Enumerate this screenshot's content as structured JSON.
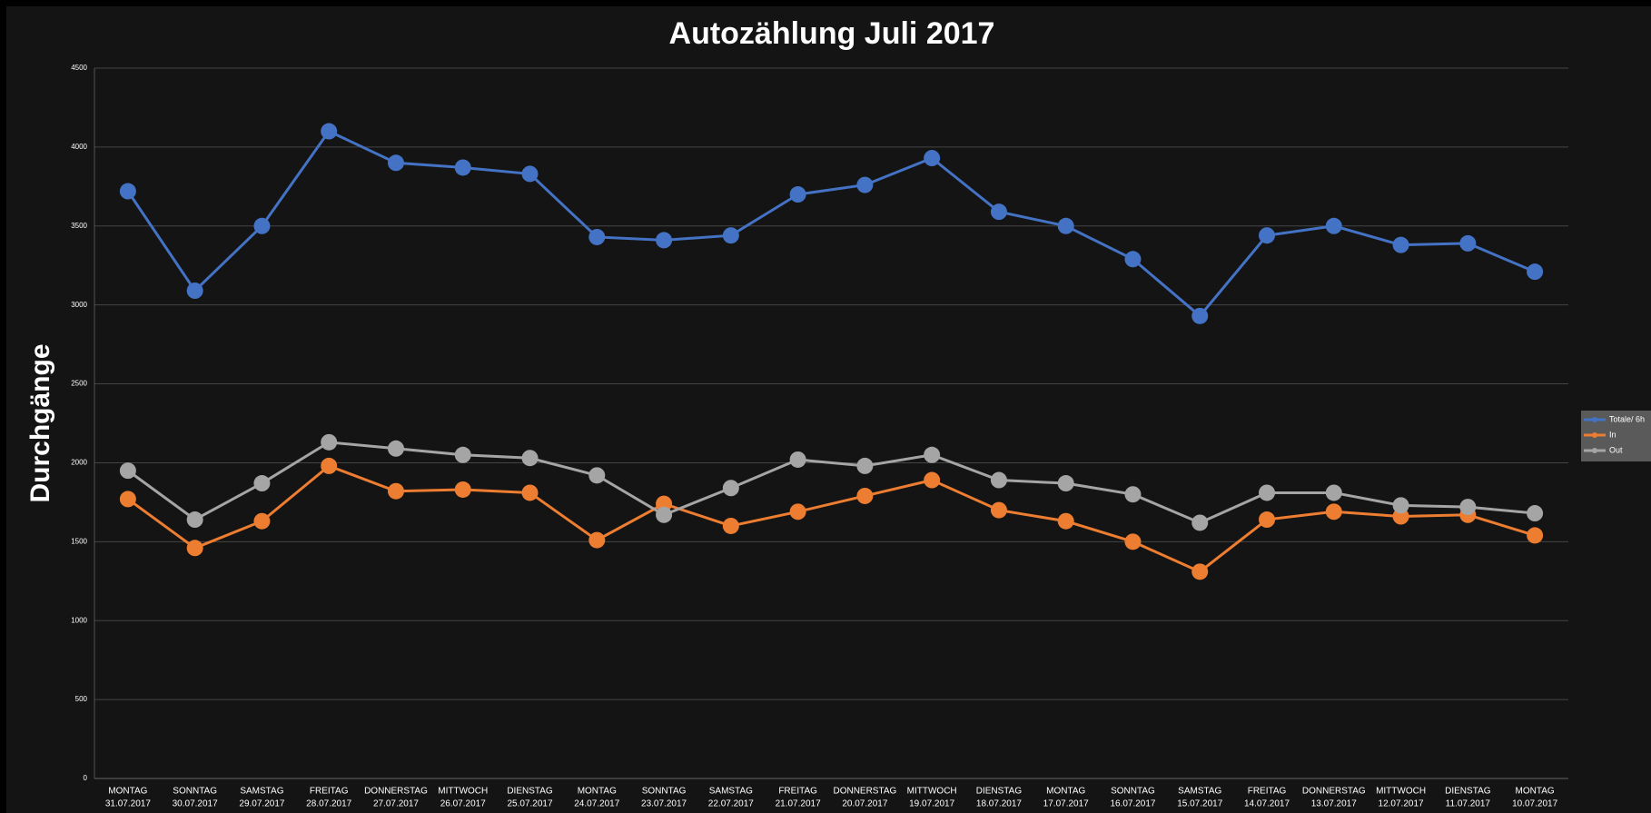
{
  "chart_data": {
    "type": "line",
    "title": "Autozählung Juli 2017",
    "y_label": "Durchgänge",
    "categories": [
      [
        "MONTAG",
        "31.07.2017"
      ],
      [
        "SONNTAG",
        "30.07.2017"
      ],
      [
        "SAMSTAG",
        "29.07.2017"
      ],
      [
        "FREITAG",
        "28.07.2017"
      ],
      [
        "DONNERSTAG",
        "27.07.2017"
      ],
      [
        "MITTWOCH",
        "26.07.2017"
      ],
      [
        "DIENSTAG",
        "25.07.2017"
      ],
      [
        "MONTAG",
        "24.07.2017"
      ],
      [
        "SONNTAG",
        "23.07.2017"
      ],
      [
        "SAMSTAG",
        "22.07.2017"
      ],
      [
        "FREITAG",
        "21.07.2017"
      ],
      [
        "DONNERSTAG",
        "20.07.2017"
      ],
      [
        "MITTWOCH",
        "19.07.2017"
      ],
      [
        "DIENSTAG",
        "18.07.2017"
      ],
      [
        "MONTAG",
        "17.07.2017"
      ],
      [
        "SONNTAG",
        "16.07.2017"
      ],
      [
        "SAMSTAG",
        "15.07.2017"
      ],
      [
        "FREITAG",
        "14.07.2017"
      ],
      [
        "DONNERSTAG",
        "13.07.2017"
      ],
      [
        "MITTWOCH",
        "12.07.2017"
      ],
      [
        "DIENSTAG",
        "11.07.2017"
      ],
      [
        "MONTAG",
        "10.07.2017"
      ]
    ],
    "series": [
      {
        "name": "Totale/ 6h",
        "color": "#4472c4",
        "values": [
          3720,
          3090,
          3500,
          4100,
          3900,
          3870,
          3830,
          3430,
          3410,
          3440,
          3700,
          3760,
          3930,
          3590,
          3500,
          3290,
          2930,
          3440,
          3500,
          3380,
          3390,
          3210
        ]
      },
      {
        "name": "In",
        "color": "#ed7d31",
        "values": [
          1770,
          1460,
          1630,
          1980,
          1820,
          1830,
          1810,
          1510,
          1740,
          1600,
          1690,
          1790,
          1890,
          1700,
          1630,
          1500,
          1310,
          1640,
          1690,
          1660,
          1670,
          1540
        ]
      },
      {
        "name": "Out",
        "color": "#a5a5a5",
        "values": [
          1950,
          1640,
          1870,
          2130,
          2090,
          2050,
          2030,
          1920,
          1670,
          1840,
          2020,
          1980,
          2050,
          1890,
          1870,
          1800,
          1620,
          1810,
          1810,
          1730,
          1720,
          1680
        ]
      }
    ],
    "ylim": [
      0,
      4500
    ],
    "yticks": [
      0,
      500,
      1000,
      1500,
      2000,
      2500,
      3000,
      3500,
      4000,
      4500
    ],
    "grid": true,
    "legend": "right"
  }
}
